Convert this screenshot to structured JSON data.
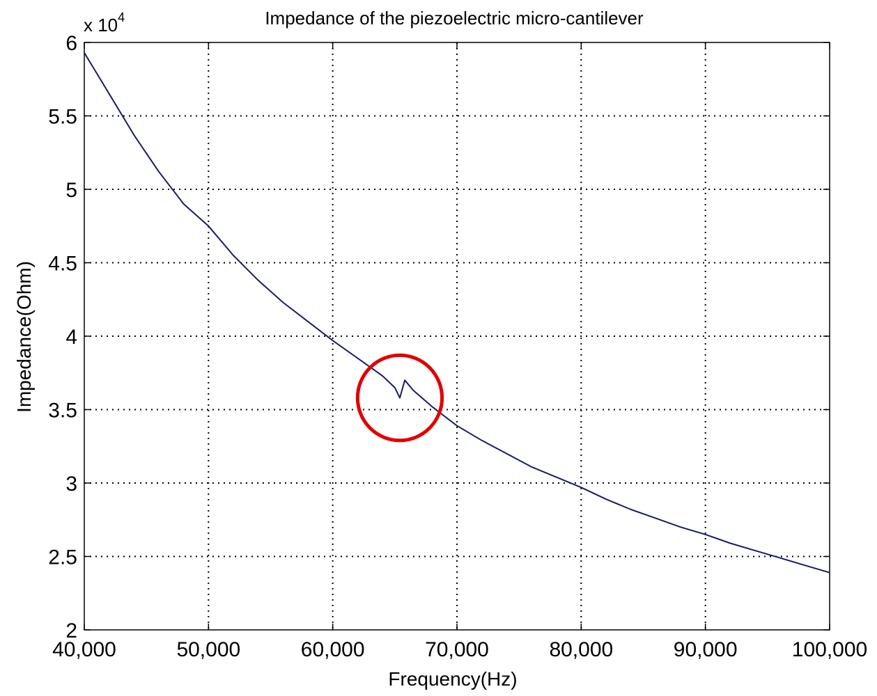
{
  "chart_data": {
    "type": "line",
    "title": "Impedance of the piezoelectric micro-cantilever",
    "xlabel": "Frequency(Hz)",
    "ylabel": "Impedance(Ohm)",
    "y_multiplier_base": "x 10",
    "y_multiplier_exponent": "4",
    "xlim": [
      40000,
      100000
    ],
    "ylim": [
      2,
      6
    ],
    "y_scale": 10000,
    "grid": true,
    "x_ticks": [
      40000,
      50000,
      60000,
      70000,
      80000,
      90000,
      100000
    ],
    "x_tick_labels": [
      "40,000",
      "50,000",
      "60,000",
      "70,000",
      "80,000",
      "90,000",
      "100,000"
    ],
    "y_ticks": [
      2,
      2.5,
      3,
      3.5,
      4,
      4.5,
      5,
      5.5,
      6
    ],
    "y_tick_labels": [
      "2",
      "2.5",
      "3",
      "3.5",
      "4",
      "4.5",
      "5",
      "5.5",
      "6"
    ],
    "series": [
      {
        "color": "#1a1a6e",
        "segments": [
          {
            "x": [
              40000,
              42000,
              44000,
              46000,
              48000,
              50000,
              52000,
              54000,
              56000,
              58000,
              60000,
              62000,
              64000,
              65000,
              65400
            ],
            "y": [
              5.93,
              5.65,
              5.37,
              5.12,
              4.9,
              4.75,
              4.55,
              4.38,
              4.23,
              4.1,
              3.97,
              3.85,
              3.73,
              3.65,
              3.58
            ]
          },
          {
            "x": [
              65400,
              65800
            ],
            "y": [
              3.58,
              3.7
            ]
          },
          {
            "x": [
              65800,
              66500,
              68000,
              70000,
              72000,
              74000,
              76000,
              78000,
              80000,
              82000,
              84000,
              86000,
              88000,
              90000,
              92000,
              94000,
              96000,
              98000,
              100000
            ],
            "y": [
              3.7,
              3.63,
              3.52,
              3.39,
              3.29,
              3.2,
              3.11,
              3.04,
              2.97,
              2.89,
              2.82,
              2.76,
              2.7,
              2.65,
              2.59,
              2.54,
              2.49,
              2.44,
              2.39
            ]
          }
        ]
      }
    ],
    "annotations": [
      {
        "type": "circle",
        "color": "#e00000",
        "center": [
          65400,
          3.58
        ],
        "radius_x": 3400,
        "radius_y": 0.29
      }
    ]
  }
}
